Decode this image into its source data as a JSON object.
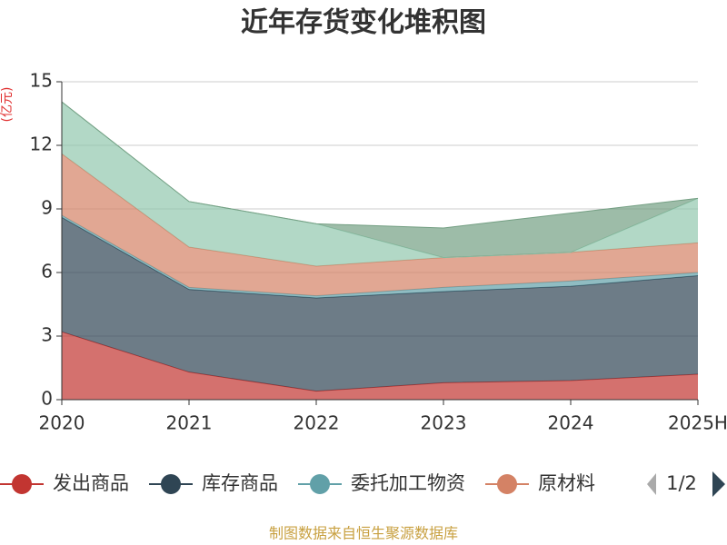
{
  "chart_data": {
    "type": "stacked-area",
    "title": "近年存货变化堆积图",
    "y_label": "(亿元)",
    "categories": [
      "2020",
      "2021",
      "2022",
      "2023",
      "2024",
      "2025H"
    ],
    "series": [
      {
        "name": "发出商品",
        "color": "#c23531",
        "values": [
          3.2,
          1.3,
          0.4,
          0.8,
          0.9,
          1.2
        ]
      },
      {
        "name": "库存商品",
        "color": "#2f4554",
        "values": [
          5.4,
          3.9,
          4.4,
          4.3,
          4.45,
          4.65
        ]
      },
      {
        "name": "委托加工物资",
        "color": "#61a0a8",
        "values": [
          0.1,
          0.1,
          0.1,
          0.2,
          0.25,
          0.15
        ]
      },
      {
        "name": "原材料",
        "color": "#d48265",
        "values": [
          2.9,
          1.9,
          1.4,
          1.4,
          1.35,
          1.4
        ]
      },
      {
        "color": "#91c7ae",
        "values": [
          2.45,
          2.15,
          2.0,
          0,
          0,
          2.1
        ]
      },
      {
        "color": "#749f83",
        "values": [
          0,
          0,
          0,
          1.4,
          1.85,
          0
        ]
      }
    ],
    "ylim": [
      0,
      15
    ],
    "yticks": [
      0,
      3,
      6,
      9,
      12,
      15
    ],
    "grid": true,
    "legend_page": "1/2",
    "source": "制图数据来自恒生聚源数据库"
  }
}
